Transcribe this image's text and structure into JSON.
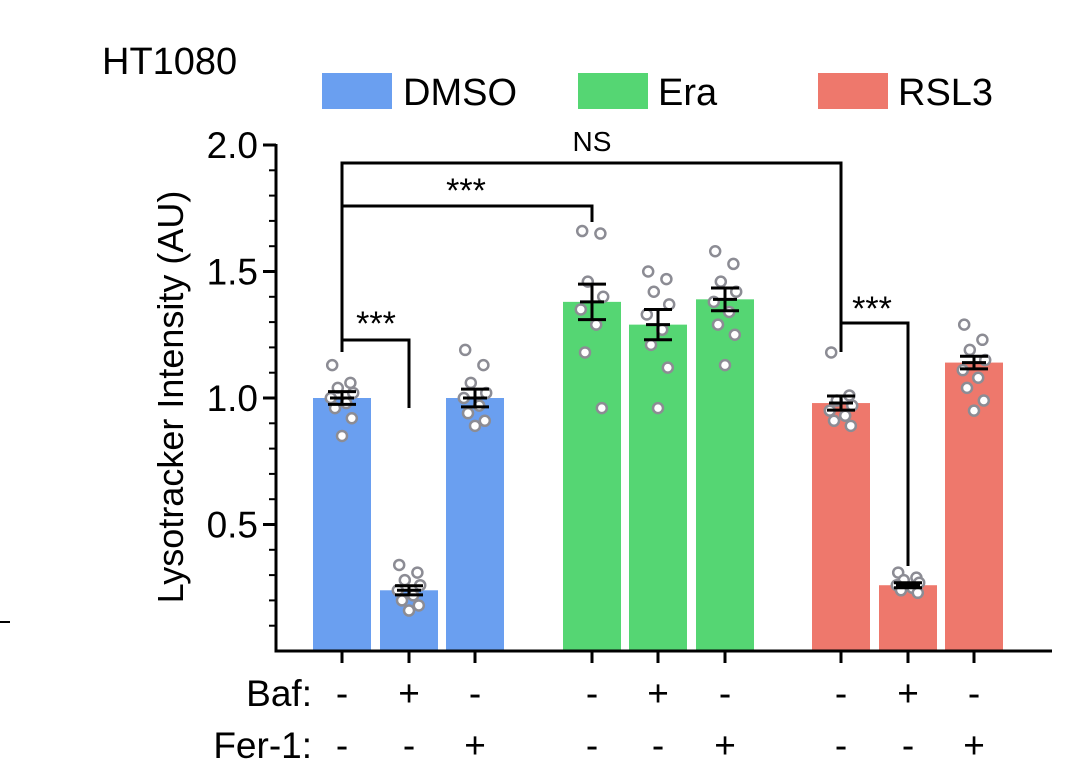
{
  "chart_data": {
    "type": "bar",
    "panel_label": "HT1080",
    "ylabel": "Lysotracker Intensity (AU)",
    "ylim": [
      0,
      2.0
    ],
    "yticks": [
      0.5,
      1.0,
      1.5,
      2.0
    ],
    "ytick_labels": [
      "0.5",
      "1.0",
      "1.5",
      "2.0"
    ],
    "legend": [
      {
        "label": "DMSO",
        "color": "#6a9ff0",
        "text_color": "#6a9ff0"
      },
      {
        "label": "Era",
        "color": "#55d673",
        "text_color": "#2e9a4a"
      },
      {
        "label": "RSL3",
        "color": "#ee786c",
        "text_color": "#ee786c"
      }
    ],
    "conditions": [
      {
        "label": "Baf:",
        "signs": [
          "-",
          "+",
          "-",
          "-",
          "+",
          "-",
          "-",
          "+",
          "-"
        ]
      },
      {
        "label": "Fer-1:",
        "signs": [
          "-",
          "-",
          "+",
          "-",
          "-",
          "+",
          "-",
          "-",
          "+"
        ]
      }
    ],
    "bars": [
      {
        "group": "DMSO",
        "value": 1.0,
        "sem": 0.025,
        "points": [
          1.13,
          1.06,
          1.04,
          1.02,
          1.0,
          0.98,
          0.96,
          0.92,
          0.85
        ]
      },
      {
        "group": "DMSO",
        "value": 0.24,
        "sem": 0.018,
        "points": [
          0.34,
          0.31,
          0.28,
          0.26,
          0.24,
          0.22,
          0.2,
          0.18,
          0.16
        ]
      },
      {
        "group": "DMSO",
        "value": 1.0,
        "sem": 0.035,
        "points": [
          1.19,
          1.13,
          1.06,
          1.02,
          1.0,
          0.97,
          0.94,
          0.91,
          0.89
        ]
      },
      {
        "group": "Era",
        "value": 1.38,
        "sem": 0.07,
        "points": [
          1.66,
          1.65,
          1.46,
          1.4,
          1.35,
          1.29,
          1.18,
          0.96
        ]
      },
      {
        "group": "Era",
        "value": 1.29,
        "sem": 0.06,
        "points": [
          1.5,
          1.47,
          1.42,
          1.37,
          1.33,
          1.27,
          1.21,
          1.12,
          0.96
        ]
      },
      {
        "group": "Era",
        "value": 1.39,
        "sem": 0.045,
        "points": [
          1.58,
          1.53,
          1.46,
          1.42,
          1.38,
          1.34,
          1.29,
          1.25,
          1.13
        ]
      },
      {
        "group": "RSL3",
        "value": 0.98,
        "sem": 0.028,
        "points": [
          1.18,
          1.01,
          0.99,
          0.97,
          0.95,
          0.93,
          0.91,
          0.89
        ]
      },
      {
        "group": "RSL3",
        "value": 0.26,
        "sem": 0.01,
        "points": [
          0.31,
          0.29,
          0.28,
          0.27,
          0.26,
          0.25,
          0.24,
          0.23
        ]
      },
      {
        "group": "RSL3",
        "value": 1.14,
        "sem": 0.025,
        "points": [
          1.29,
          1.23,
          1.19,
          1.15,
          1.11,
          1.08,
          1.04,
          0.99,
          0.95
        ]
      }
    ],
    "significance": [
      {
        "from_bar": 0,
        "to_bar": 1,
        "label": "***"
      },
      {
        "from_bar": 0,
        "to_bar": 3,
        "label": "***"
      },
      {
        "from_bar": 0,
        "to_bar": 6,
        "label": "NS"
      },
      {
        "from_bar": 6,
        "to_bar": 7,
        "label": "***"
      }
    ]
  }
}
